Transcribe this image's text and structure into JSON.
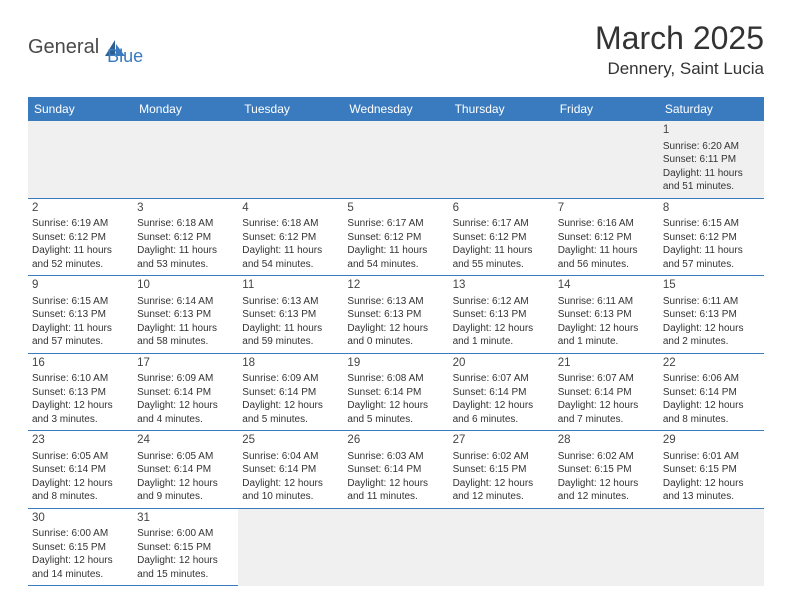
{
  "logo": {
    "text_general": "General",
    "text_blue": "Blue"
  },
  "header": {
    "month_title": "March 2025",
    "location": "Dennery, Saint Lucia"
  },
  "colors": {
    "header_bg": "#3a7bbf",
    "header_text": "#ffffff",
    "cell_border": "#3a7bbf",
    "alt_bg": "#f0f0f0",
    "text": "#333333"
  },
  "day_names": [
    "Sunday",
    "Monday",
    "Tuesday",
    "Wednesday",
    "Thursday",
    "Friday",
    "Saturday"
  ],
  "weeks": [
    [
      null,
      null,
      null,
      null,
      null,
      null,
      {
        "n": "1",
        "sr": "Sunrise: 6:20 AM",
        "ss": "Sunset: 6:11 PM",
        "dl": "Daylight: 11 hours and 51 minutes."
      }
    ],
    [
      {
        "n": "2",
        "sr": "Sunrise: 6:19 AM",
        "ss": "Sunset: 6:12 PM",
        "dl": "Daylight: 11 hours and 52 minutes."
      },
      {
        "n": "3",
        "sr": "Sunrise: 6:18 AM",
        "ss": "Sunset: 6:12 PM",
        "dl": "Daylight: 11 hours and 53 minutes."
      },
      {
        "n": "4",
        "sr": "Sunrise: 6:18 AM",
        "ss": "Sunset: 6:12 PM",
        "dl": "Daylight: 11 hours and 54 minutes."
      },
      {
        "n": "5",
        "sr": "Sunrise: 6:17 AM",
        "ss": "Sunset: 6:12 PM",
        "dl": "Daylight: 11 hours and 54 minutes."
      },
      {
        "n": "6",
        "sr": "Sunrise: 6:17 AM",
        "ss": "Sunset: 6:12 PM",
        "dl": "Daylight: 11 hours and 55 minutes."
      },
      {
        "n": "7",
        "sr": "Sunrise: 6:16 AM",
        "ss": "Sunset: 6:12 PM",
        "dl": "Daylight: 11 hours and 56 minutes."
      },
      {
        "n": "8",
        "sr": "Sunrise: 6:15 AM",
        "ss": "Sunset: 6:12 PM",
        "dl": "Daylight: 11 hours and 57 minutes."
      }
    ],
    [
      {
        "n": "9",
        "sr": "Sunrise: 6:15 AM",
        "ss": "Sunset: 6:13 PM",
        "dl": "Daylight: 11 hours and 57 minutes."
      },
      {
        "n": "10",
        "sr": "Sunrise: 6:14 AM",
        "ss": "Sunset: 6:13 PM",
        "dl": "Daylight: 11 hours and 58 minutes."
      },
      {
        "n": "11",
        "sr": "Sunrise: 6:13 AM",
        "ss": "Sunset: 6:13 PM",
        "dl": "Daylight: 11 hours and 59 minutes."
      },
      {
        "n": "12",
        "sr": "Sunrise: 6:13 AM",
        "ss": "Sunset: 6:13 PM",
        "dl": "Daylight: 12 hours and 0 minutes."
      },
      {
        "n": "13",
        "sr": "Sunrise: 6:12 AM",
        "ss": "Sunset: 6:13 PM",
        "dl": "Daylight: 12 hours and 1 minute."
      },
      {
        "n": "14",
        "sr": "Sunrise: 6:11 AM",
        "ss": "Sunset: 6:13 PM",
        "dl": "Daylight: 12 hours and 1 minute."
      },
      {
        "n": "15",
        "sr": "Sunrise: 6:11 AM",
        "ss": "Sunset: 6:13 PM",
        "dl": "Daylight: 12 hours and 2 minutes."
      }
    ],
    [
      {
        "n": "16",
        "sr": "Sunrise: 6:10 AM",
        "ss": "Sunset: 6:13 PM",
        "dl": "Daylight: 12 hours and 3 minutes."
      },
      {
        "n": "17",
        "sr": "Sunrise: 6:09 AM",
        "ss": "Sunset: 6:14 PM",
        "dl": "Daylight: 12 hours and 4 minutes."
      },
      {
        "n": "18",
        "sr": "Sunrise: 6:09 AM",
        "ss": "Sunset: 6:14 PM",
        "dl": "Daylight: 12 hours and 5 minutes."
      },
      {
        "n": "19",
        "sr": "Sunrise: 6:08 AM",
        "ss": "Sunset: 6:14 PM",
        "dl": "Daylight: 12 hours and 5 minutes."
      },
      {
        "n": "20",
        "sr": "Sunrise: 6:07 AM",
        "ss": "Sunset: 6:14 PM",
        "dl": "Daylight: 12 hours and 6 minutes."
      },
      {
        "n": "21",
        "sr": "Sunrise: 6:07 AM",
        "ss": "Sunset: 6:14 PM",
        "dl": "Daylight: 12 hours and 7 minutes."
      },
      {
        "n": "22",
        "sr": "Sunrise: 6:06 AM",
        "ss": "Sunset: 6:14 PM",
        "dl": "Daylight: 12 hours and 8 minutes."
      }
    ],
    [
      {
        "n": "23",
        "sr": "Sunrise: 6:05 AM",
        "ss": "Sunset: 6:14 PM",
        "dl": "Daylight: 12 hours and 8 minutes."
      },
      {
        "n": "24",
        "sr": "Sunrise: 6:05 AM",
        "ss": "Sunset: 6:14 PM",
        "dl": "Daylight: 12 hours and 9 minutes."
      },
      {
        "n": "25",
        "sr": "Sunrise: 6:04 AM",
        "ss": "Sunset: 6:14 PM",
        "dl": "Daylight: 12 hours and 10 minutes."
      },
      {
        "n": "26",
        "sr": "Sunrise: 6:03 AM",
        "ss": "Sunset: 6:14 PM",
        "dl": "Daylight: 12 hours and 11 minutes."
      },
      {
        "n": "27",
        "sr": "Sunrise: 6:02 AM",
        "ss": "Sunset: 6:15 PM",
        "dl": "Daylight: 12 hours and 12 minutes."
      },
      {
        "n": "28",
        "sr": "Sunrise: 6:02 AM",
        "ss": "Sunset: 6:15 PM",
        "dl": "Daylight: 12 hours and 12 minutes."
      },
      {
        "n": "29",
        "sr": "Sunrise: 6:01 AM",
        "ss": "Sunset: 6:15 PM",
        "dl": "Daylight: 12 hours and 13 minutes."
      }
    ],
    [
      {
        "n": "30",
        "sr": "Sunrise: 6:00 AM",
        "ss": "Sunset: 6:15 PM",
        "dl": "Daylight: 12 hours and 14 minutes."
      },
      {
        "n": "31",
        "sr": "Sunrise: 6:00 AM",
        "ss": "Sunset: 6:15 PM",
        "dl": "Daylight: 12 hours and 15 minutes."
      },
      null,
      null,
      null,
      null,
      null
    ]
  ]
}
